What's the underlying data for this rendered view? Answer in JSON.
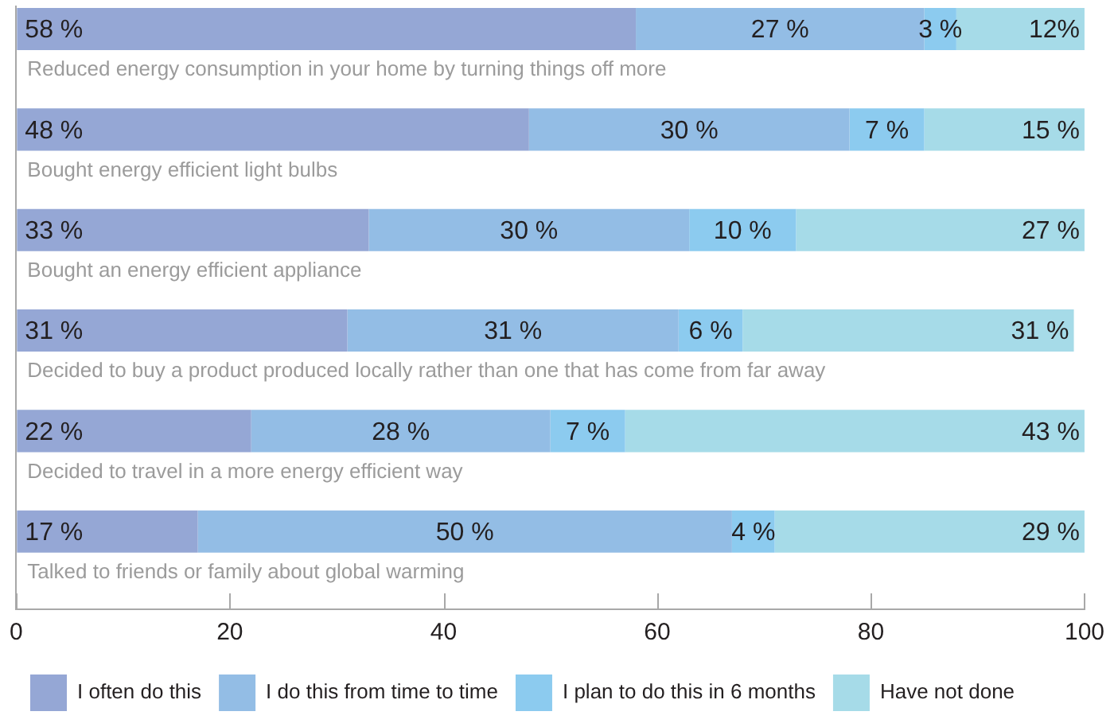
{
  "chart_data": {
    "type": "bar",
    "orientation": "horizontal",
    "stacked": true,
    "categories": [
      "Reduced energy consumption in your home by turning things off more",
      "Bought energy efficient light bulbs",
      "Bought an energy efficient appliance",
      "Decided to buy a product produced locally rather than one that has come from far away",
      "Decided to travel in a more energy efficient way",
      "Talked to friends or family about global warming"
    ],
    "series": [
      {
        "name": "I often do this",
        "color": "#95a7d5",
        "values": [
          58,
          48,
          33,
          31,
          22,
          17
        ],
        "value_labels": [
          "58 %",
          "48 %",
          "33 %",
          "31 %",
          "22 %",
          "17 %"
        ]
      },
      {
        "name": "I do this from time to time",
        "color": "#93bde5",
        "values": [
          27,
          30,
          30,
          31,
          28,
          50
        ],
        "value_labels": [
          "27 %",
          "30 %",
          "30 %",
          "31 %",
          "28 %",
          "50 %"
        ]
      },
      {
        "name": "I plan to do this in 6 months",
        "color": "#8ccbef",
        "values": [
          3,
          7,
          10,
          6,
          7,
          4
        ],
        "value_labels": [
          "3 %",
          "7 %",
          "10 %",
          "6 %",
          "7 %",
          "4 %"
        ]
      },
      {
        "name": "Have not done",
        "color": "#a6dbe8",
        "values": [
          12,
          15,
          27,
          31,
          43,
          29
        ],
        "value_labels": [
          "12%",
          "15 %",
          "27 %",
          "31 %",
          "43 %",
          "29 %"
        ]
      }
    ],
    "xlim": [
      0,
      100
    ],
    "xticks": [
      0,
      20,
      40,
      60,
      80,
      100
    ],
    "grid": false,
    "legend": "bottom"
  }
}
